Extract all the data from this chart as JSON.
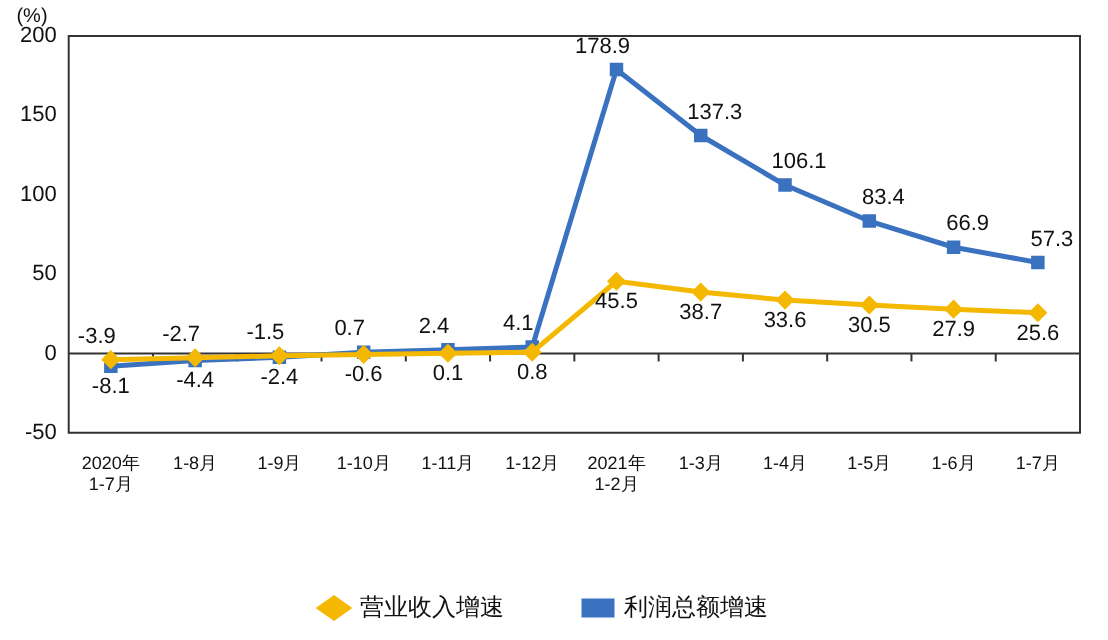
{
  "chart_data": {
    "type": "line",
    "ylabel": "(%)",
    "categories": [
      "2020年\n1-7月",
      "1-8月",
      "1-9月",
      "1-10月",
      "1-11月",
      "1-12月",
      "2021年\n1-2月",
      "1-3月",
      "1-4月",
      "1-5月",
      "1-6月",
      "1-7月"
    ],
    "series": [
      {
        "name": "营业收入增速",
        "color": "#f5b800",
        "marker": "diamond",
        "values": [
          -3.9,
          -2.7,
          -1.5,
          -0.6,
          0.1,
          0.8,
          45.5,
          38.7,
          33.6,
          30.5,
          27.9,
          25.6
        ]
      },
      {
        "name": "利润总额增速",
        "color": "#3a72c0",
        "marker": "square",
        "values": [
          -8.1,
          -4.4,
          -2.4,
          0.7,
          2.4,
          4.1,
          178.9,
          137.3,
          106.1,
          83.4,
          66.9,
          57.3
        ]
      }
    ],
    "ylim": [
      -50,
      200
    ],
    "yticks": [
      -50,
      0,
      50,
      100,
      150,
      200
    ],
    "legend": "bottom",
    "data_labels": true,
    "line_style": "solid"
  }
}
